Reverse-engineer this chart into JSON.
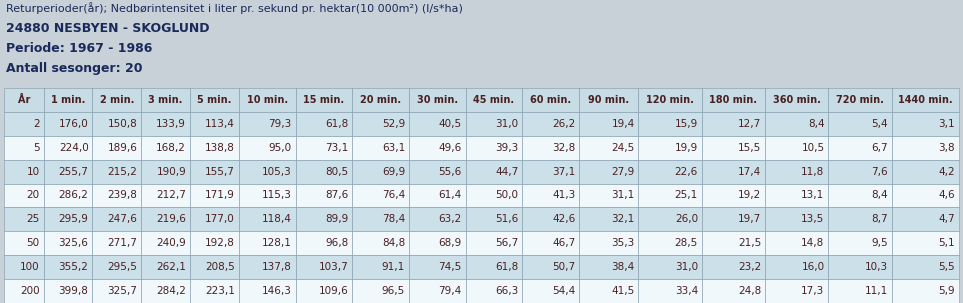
{
  "title_line1": "Returperioder(år); Nedbørintensitet i liter pr. sekund pr. hektar(10 000m²) (l/s*ha)",
  "title_line2": "24880 NESBYEN - SKOGLUND",
  "title_line3": "Periode: 1967 - 1986",
  "title_line4": "Antall sesonger: 20",
  "col_headers": [
    "År",
    "1 min.",
    "2 min.",
    "3 min.",
    "5 min.",
    "10 min.",
    "15 min.",
    "20 min.",
    "30 min.",
    "45 min.",
    "60 min.",
    "90 min.",
    "120 min.",
    "180 min.",
    "360 min.",
    "720 min.",
    "1440 min."
  ],
  "rows": [
    [
      2,
      176.0,
      150.8,
      133.9,
      113.4,
      79.3,
      61.8,
      52.9,
      40.5,
      31.0,
      26.2,
      19.4,
      15.9,
      12.7,
      8.4,
      5.4,
      3.1
    ],
    [
      5,
      224.0,
      189.6,
      168.2,
      138.8,
      95.0,
      73.1,
      63.1,
      49.6,
      39.3,
      32.8,
      24.5,
      19.9,
      15.5,
      10.5,
      6.7,
      3.8
    ],
    [
      10,
      255.7,
      215.2,
      190.9,
      155.7,
      105.3,
      80.5,
      69.9,
      55.6,
      44.7,
      37.1,
      27.9,
      22.6,
      17.4,
      11.8,
      7.6,
      4.2
    ],
    [
      20,
      286.2,
      239.8,
      212.7,
      171.9,
      115.3,
      87.6,
      76.4,
      61.4,
      50.0,
      41.3,
      31.1,
      25.1,
      19.2,
      13.1,
      8.4,
      4.6
    ],
    [
      25,
      295.9,
      247.6,
      219.6,
      177.0,
      118.4,
      89.9,
      78.4,
      63.2,
      51.6,
      42.6,
      32.1,
      26.0,
      19.7,
      13.5,
      8.7,
      4.7
    ],
    [
      50,
      325.6,
      271.7,
      240.9,
      192.8,
      128.1,
      96.8,
      84.8,
      68.9,
      56.7,
      46.7,
      35.3,
      28.5,
      21.5,
      14.8,
      9.5,
      5.1
    ],
    [
      100,
      355.2,
      295.5,
      262.1,
      208.5,
      137.8,
      103.7,
      91.1,
      74.5,
      61.8,
      50.7,
      38.4,
      31.0,
      23.2,
      16.0,
      10.3,
      5.5
    ],
    [
      200,
      399.8,
      325.7,
      284.2,
      223.1,
      146.3,
      109.6,
      96.5,
      79.4,
      66.3,
      54.4,
      41.5,
      33.4,
      24.8,
      17.3,
      11.1,
      5.9
    ]
  ],
  "bg_header": "#c8dce6",
  "bg_row_blue": "#cce0ea",
  "bg_row_white": "#f0f8fc",
  "text_color": "#4a2020",
  "border_color": "#8099aa",
  "title_bg": "#c8d0d8",
  "table_bg": "#e8f0f4",
  "header_font_size": 7.0,
  "cell_font_size": 7.5,
  "title_font_size1": 8.0,
  "title_font_size2": 9.0,
  "title_text_color": "#1a2a5a"
}
